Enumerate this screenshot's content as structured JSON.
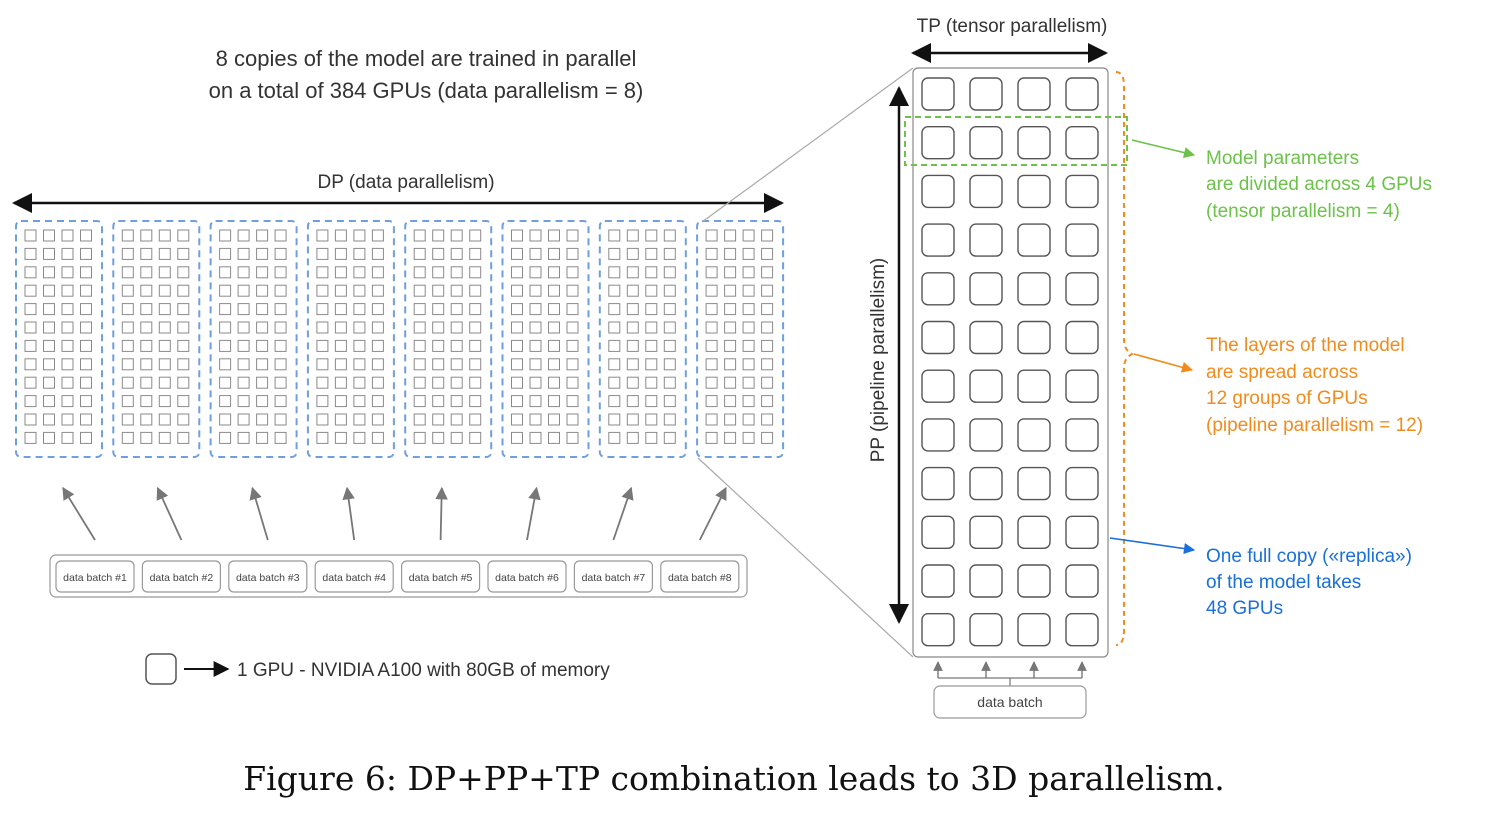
{
  "header": {
    "line1": "8 copies of the model are trained in parallel",
    "line2": "on a total of 384 GPUs (data parallelism = 8)"
  },
  "dp_label": "DP (data parallelism)",
  "tp_label": "TP (tensor parallelism)",
  "pp_label": "PP (pipeline parallelism)",
  "batches": [
    "data batch #1",
    "data batch #2",
    "data batch #3",
    "data batch #4",
    "data batch #5",
    "data batch #6",
    "data batch #7",
    "data batch #8"
  ],
  "data_batch_label": "data batch",
  "legend": {
    "text": "1 GPU - NVIDIA A100 with 80GB of memory"
  },
  "annotations": {
    "tensor": {
      "lines": [
        "Model parameters",
        "are divided across 4 GPUs",
        "(tensor parallelism = 4)"
      ],
      "color": "#6cc24a"
    },
    "pipeline": {
      "lines": [
        "The layers of the model",
        "are spread across",
        "12 groups of GPUs",
        "(pipeline parallelism = 12)"
      ],
      "color": "#f08c1e"
    },
    "replica": {
      "lines": [
        "One full copy («replica»)",
        "of the model takes",
        "48 GPUs"
      ],
      "color": "#1a6fd8"
    }
  },
  "caption": "Figure 6: DP+PP+TP combination leads to 3D parallelism.",
  "colors": {
    "dp_dashed": "#6f9fdc",
    "gray": "#8a8a8a",
    "text": "#333333"
  }
}
